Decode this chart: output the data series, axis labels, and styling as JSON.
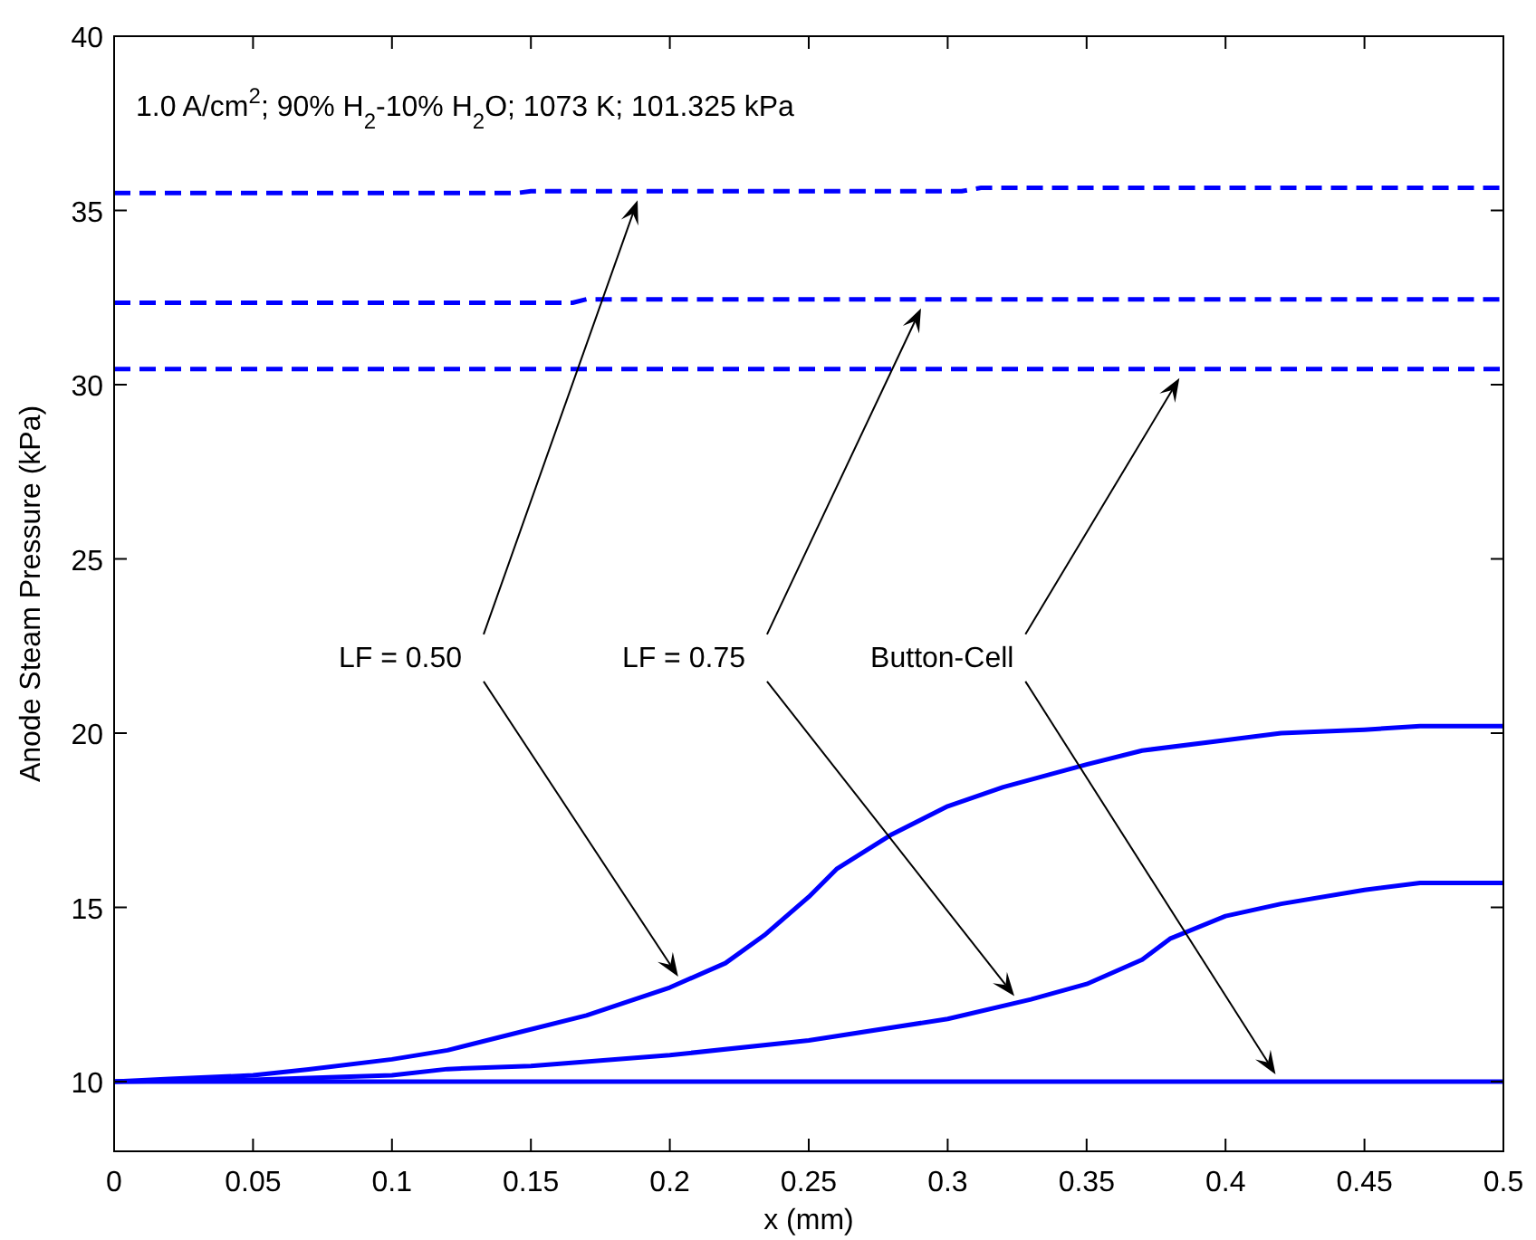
{
  "chart_data": {
    "type": "line",
    "xlabel": "x (mm)",
    "ylabel": "Anode Steam Pressure (kPa)",
    "xlim": [
      0,
      0.5
    ],
    "ylim": [
      8,
      40
    ],
    "xticks": [
      0,
      0.05,
      0.1,
      0.15,
      0.2,
      0.25,
      0.3,
      0.35,
      0.4,
      0.45,
      0.5
    ],
    "yticks": [
      10,
      15,
      20,
      25,
      30,
      35,
      40
    ],
    "grid": false,
    "series": [
      {
        "color": "#0000ff",
        "line_style": "dashed",
        "x": [
          0,
          0.145,
          0.15,
          0.305,
          0.312,
          0.5
        ],
        "values": [
          35.5,
          35.5,
          35.55,
          35.55,
          35.65,
          35.65
        ]
      },
      {
        "color": "#0000ff",
        "line_style": "dashed",
        "x": [
          0,
          0.165,
          0.17,
          0.5
        ],
        "values": [
          32.35,
          32.35,
          32.45,
          32.45
        ]
      },
      {
        "color": "#0000ff",
        "line_style": "dashed",
        "x": [
          0,
          0.5
        ],
        "values": [
          30.45,
          30.45
        ]
      },
      {
        "color": "#0000ff",
        "line_style": "solid",
        "x": [
          0,
          0.02,
          0.05,
          0.07,
          0.1,
          0.12,
          0.15,
          0.17,
          0.2,
          0.22,
          0.234,
          0.25,
          0.26,
          0.28,
          0.3,
          0.32,
          0.35,
          0.37,
          0.4,
          0.42,
          0.45,
          0.47,
          0.5
        ],
        "values": [
          10,
          10.08,
          10.18,
          10.35,
          10.64,
          10.9,
          11.5,
          11.9,
          12.7,
          13.4,
          14.2,
          15.3,
          16.1,
          17.1,
          17.9,
          18.45,
          19.1,
          19.5,
          19.8,
          20.0,
          20.1,
          20.2,
          20.2
        ]
      },
      {
        "color": "#0000ff",
        "line_style": "solid",
        "x": [
          0,
          0.05,
          0.1,
          0.12,
          0.15,
          0.2,
          0.25,
          0.3,
          0.33,
          0.35,
          0.37,
          0.38,
          0.4,
          0.42,
          0.45,
          0.47,
          0.5
        ],
        "values": [
          10,
          10.05,
          10.18,
          10.36,
          10.45,
          10.76,
          11.18,
          11.8,
          12.36,
          12.8,
          13.5,
          14.1,
          14.75,
          15.1,
          15.5,
          15.7,
          15.7
        ]
      },
      {
        "color": "#0000ff",
        "line_style": "solid",
        "x": [
          0,
          0.5
        ],
        "values": [
          10,
          10
        ]
      }
    ],
    "annotations": [
      "1.0 A/cm$^{2}$; 90% H$_{2}$-10% H$_{2}$O; 1073 K; 101.325 kPa",
      "LF = 0.50",
      "LF = 0.75",
      "Button-Cell"
    ]
  }
}
